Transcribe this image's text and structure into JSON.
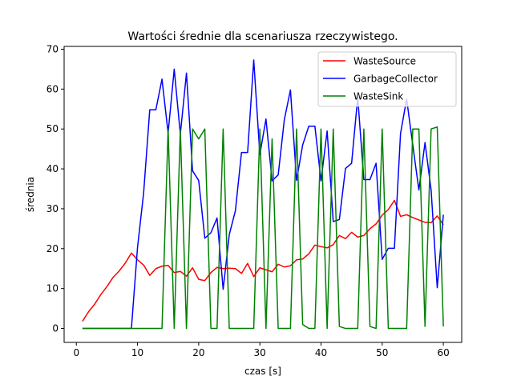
{
  "chart_data": {
    "type": "line",
    "title": "Wartości średnie dla scenariusza rzeczywistego.",
    "xlabel": "czas [s]",
    "ylabel": "średnia",
    "xlim": [
      -2,
      63
    ],
    "ylim": [
      -3.5,
      70.7
    ],
    "xticks": [
      0,
      10,
      20,
      30,
      40,
      50,
      60
    ],
    "yticks": [
      0,
      10,
      20,
      30,
      40,
      50,
      60,
      70
    ],
    "legend_position": "top-right",
    "series": [
      {
        "name": "WasteSource",
        "color": "#ff0000",
        "x": [
          1,
          2,
          3,
          4,
          5,
          6,
          7,
          8,
          9,
          10,
          11,
          12,
          13,
          14,
          15,
          16,
          17,
          18,
          19,
          20,
          21,
          22,
          23,
          24,
          25,
          26,
          27,
          28,
          29,
          30,
          31,
          32,
          33,
          34,
          35,
          36,
          37,
          38,
          39,
          40,
          41,
          42,
          43,
          44,
          45,
          46,
          47,
          48,
          49,
          50,
          51,
          52,
          53,
          54,
          55,
          56,
          57,
          58,
          59,
          60
        ],
        "values": [
          1.8,
          4.2,
          6.1,
          8.5,
          10.5,
          12.8,
          14.4,
          16.4,
          18.9,
          17.2,
          15.9,
          13.3,
          15.0,
          15.6,
          15.8,
          14.0,
          14.3,
          13.1,
          15.2,
          12.3,
          12.0,
          14.0,
          15.3,
          15.0,
          15.1,
          15.0,
          13.8,
          16.3,
          13.0,
          15.2,
          14.7,
          14.2,
          16.1,
          15.4,
          15.7,
          17.2,
          17.4,
          18.7,
          20.9,
          20.5,
          20.2,
          21.0,
          23.3,
          22.5,
          24.1,
          22.9,
          23.3,
          25.0,
          26.2,
          28.4,
          29.8,
          32.1,
          28.1,
          28.5,
          27.8,
          27.2,
          26.6,
          26.5,
          28.2,
          26.0
        ]
      },
      {
        "name": "GarbageCollector",
        "color": "#0000ff",
        "x": [
          1,
          2,
          3,
          4,
          5,
          6,
          7,
          8,
          9,
          10,
          11,
          12,
          13,
          14,
          15,
          16,
          17,
          18,
          19,
          20,
          21,
          22,
          23,
          24,
          25,
          26,
          27,
          28,
          29,
          30,
          31,
          32,
          33,
          34,
          35,
          36,
          37,
          38,
          39,
          40,
          41,
          42,
          43,
          44,
          45,
          46,
          47,
          48,
          49,
          50,
          51,
          52,
          53,
          54,
          55,
          56,
          57,
          58,
          59,
          60
        ],
        "values": [
          0,
          0,
          0,
          0,
          0,
          0,
          0,
          0,
          0,
          20.3,
          34.0,
          54.8,
          54.8,
          62.5,
          49.0,
          65.0,
          48.7,
          64.0,
          39.5,
          37.1,
          22.6,
          24.0,
          27.7,
          9.8,
          23.5,
          29.5,
          44.1,
          44.1,
          67.3,
          43.6,
          52.5,
          37.0,
          38.5,
          52.3,
          59.8,
          37.1,
          46.0,
          50.7,
          50.7,
          37.0,
          49.5,
          26.8,
          27.3,
          40.1,
          41.4,
          58.0,
          37.3,
          37.3,
          41.4,
          17.3,
          20.1,
          20.1,
          48.9,
          57.5,
          46.0,
          34.7,
          46.6,
          34.7,
          10.2,
          28.5
        ]
      },
      {
        "name": "WasteSink",
        "color": "#008000",
        "x": [
          1,
          2,
          3,
          4,
          5,
          6,
          7,
          8,
          9,
          10,
          11,
          12,
          13,
          14,
          15,
          16,
          17,
          18,
          19,
          20,
          21,
          22,
          23,
          24,
          25,
          26,
          27,
          28,
          29,
          30,
          31,
          32,
          33,
          34,
          35,
          36,
          37,
          38,
          39,
          40,
          41,
          42,
          43,
          44,
          45,
          46,
          47,
          48,
          49,
          50,
          51,
          52,
          53,
          54,
          55,
          56,
          57,
          58,
          59,
          60
        ],
        "values": [
          0,
          0,
          0,
          0,
          0,
          0,
          0,
          0,
          0,
          0,
          0,
          0,
          0,
          0,
          50,
          0,
          50,
          0,
          50,
          47.5,
          50,
          0,
          0,
          50,
          0,
          0,
          0,
          0,
          0,
          50,
          0,
          47.5,
          0,
          0,
          0,
          50,
          1.0,
          0,
          0,
          50,
          0,
          50,
          0.5,
          0,
          0,
          0,
          50,
          0.5,
          0,
          50,
          0,
          0,
          0,
          0,
          50,
          50,
          0.5,
          50,
          50.5,
          0.5
        ]
      }
    ]
  }
}
